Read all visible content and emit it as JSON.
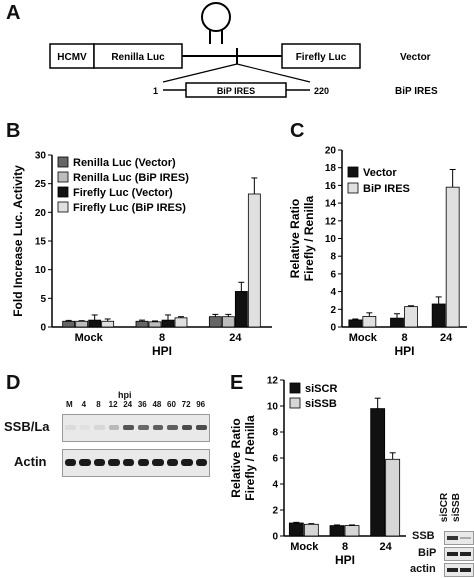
{
  "panels": {
    "A": "A",
    "B": "B",
    "C": "C",
    "D": "D",
    "E": "E"
  },
  "construct": {
    "promoter": "HCMV",
    "renilla": "Renilla Luc",
    "firefly": "Firefly Luc",
    "vector_label": "Vector",
    "insert": "BiP IRES",
    "insert_start": "1",
    "insert_end": "220",
    "insert_label": "BiP IRES"
  },
  "colors": {
    "renilla_vector": "#666666",
    "renilla_bip": "#bdbdbd",
    "firefly_vector": "#111111",
    "firefly_bip": "#e0e0e0",
    "sissb": "#d6d6d6"
  },
  "blot_d": {
    "hpi_title": "hpi",
    "lanes": [
      "M",
      "4",
      "8",
      "12",
      "24",
      "36",
      "48",
      "60",
      "72",
      "96"
    ],
    "rows": [
      "SSB/La",
      "Actin"
    ],
    "ssb_intensity": [
      0.08,
      0.05,
      0.1,
      0.25,
      0.75,
      0.65,
      0.7,
      0.7,
      0.8,
      0.8
    ]
  },
  "blot_e": {
    "lanes": [
      "siSCR",
      "siSSB"
    ],
    "rows": [
      "SSB",
      "BiP",
      "actin"
    ]
  },
  "chart_data": [
    {
      "type": "bar",
      "panel": "B",
      "ylabel": "Fold Increase Luc. Activity",
      "xlabel": "HPI",
      "categories": [
        "Mock",
        "8",
        "24"
      ],
      "ylim": [
        0,
        30
      ],
      "yticks": [
        0,
        5,
        10,
        15,
        20,
        25,
        30
      ],
      "legend_position": "top-left",
      "series": [
        {
          "name": "Renilla Luc (Vector)",
          "values": [
            1.0,
            1.0,
            1.8
          ],
          "errors": [
            0.15,
            0.2,
            0.4
          ]
        },
        {
          "name": "Renilla Luc (BiP IRES)",
          "values": [
            1.0,
            0.9,
            1.8
          ],
          "errors": [
            0.1,
            0.15,
            0.4
          ]
        },
        {
          "name": "Firefly Luc (Vector)",
          "values": [
            1.2,
            1.2,
            6.2
          ],
          "errors": [
            0.9,
            0.9,
            1.6
          ]
        },
        {
          "name": "Firefly Luc (BiP IRES)",
          "values": [
            1.0,
            1.6,
            23.2
          ],
          "errors": [
            0.4,
            0.2,
            2.8
          ]
        }
      ]
    },
    {
      "type": "bar",
      "panel": "C",
      "ylabel_line1": "Relative Ratio",
      "ylabel_line2": "Firefly / Renilla",
      "xlabel": "HPI",
      "categories": [
        "Mock",
        "8",
        "24"
      ],
      "ylim": [
        0,
        20
      ],
      "yticks": [
        0,
        2,
        4,
        6,
        8,
        10,
        12,
        14,
        16,
        18,
        20
      ],
      "legend_position": "top-left",
      "series": [
        {
          "name": "Vector",
          "values": [
            0.8,
            1.0,
            2.6
          ],
          "errors": [
            0.1,
            0.5,
            0.8
          ]
        },
        {
          "name": "BiP IRES",
          "values": [
            1.2,
            2.3,
            15.8
          ],
          "errors": [
            0.4,
            0.1,
            2.0
          ]
        }
      ]
    },
    {
      "type": "bar",
      "panel": "E",
      "ylabel_line1": "Relative Ratio",
      "ylabel_line2": "Firefly / Renilla",
      "xlabel": "HPI",
      "categories": [
        "Mock",
        "8",
        "24"
      ],
      "ylim": [
        0,
        12
      ],
      "yticks": [
        0,
        2,
        4,
        6,
        8,
        10,
        12
      ],
      "legend_position": "top-left",
      "series": [
        {
          "name": "siSCR",
          "values": [
            1.0,
            0.8,
            9.8
          ],
          "errors": [
            0.05,
            0.05,
            0.8
          ]
        },
        {
          "name": "siSSB",
          "values": [
            0.9,
            0.8,
            5.9
          ],
          "errors": [
            0.05,
            0.05,
            0.5
          ]
        }
      ]
    }
  ]
}
